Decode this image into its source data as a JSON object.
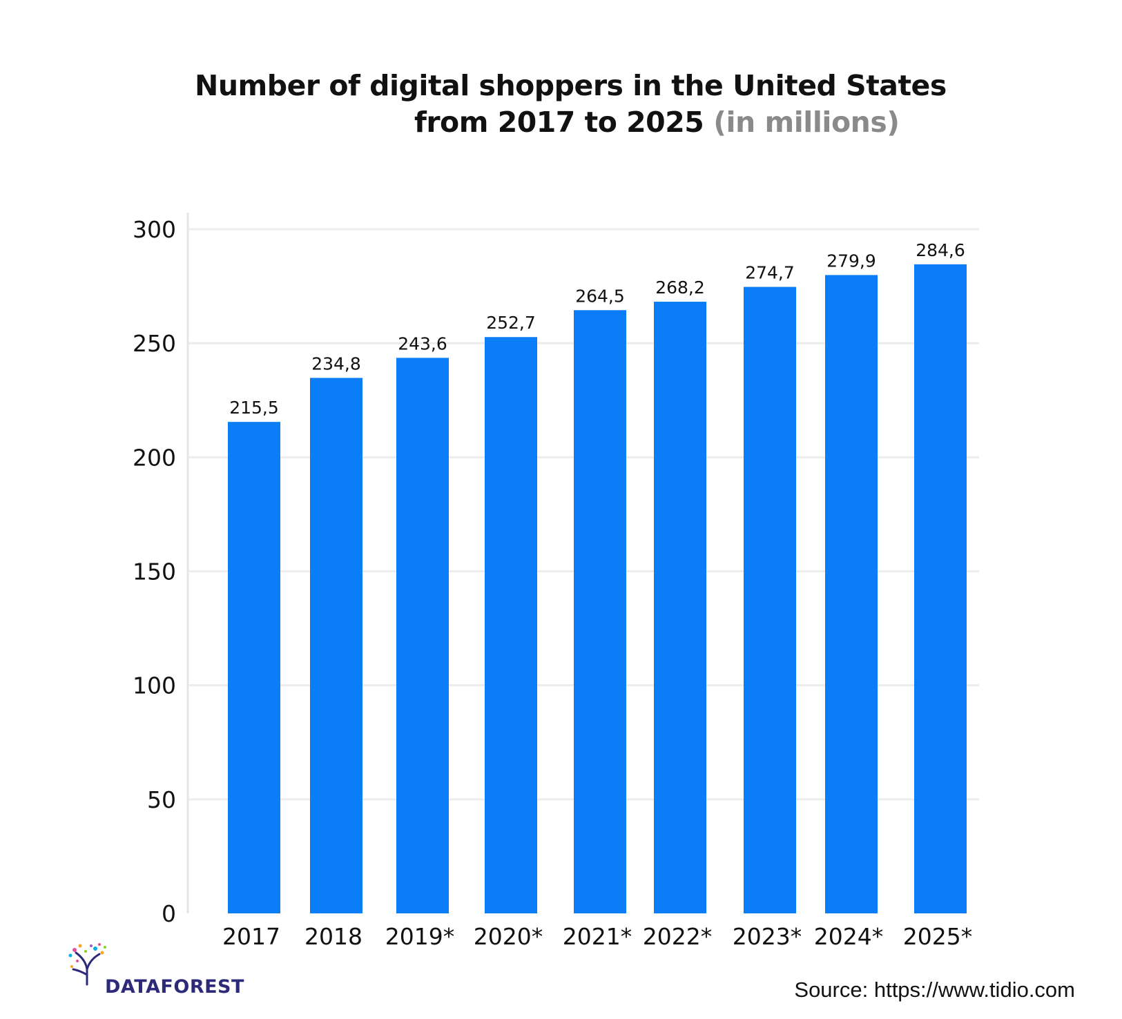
{
  "chart_data": {
    "type": "bar",
    "title_line1": "Number of digital shoppers in the United States",
    "title_line2": "from 2017 to 2025",
    "title_unit": "(in millions)",
    "categories": [
      "2017",
      "2018",
      "2019*",
      "2020*",
      "2021*",
      "2022*",
      "2023*",
      "2024*",
      "2025*"
    ],
    "values": [
      215.5,
      234.8,
      243.6,
      252.7,
      264.5,
      268.2,
      274.7,
      279.9,
      284.6
    ],
    "value_labels": [
      "215,5",
      "234,8",
      "243,6",
      "252,7",
      "264,5",
      "268,2",
      "274,7",
      "279,9",
      "284,6"
    ],
    "yticks": [
      0,
      50,
      100,
      150,
      200,
      250,
      300
    ],
    "ylim": [
      0,
      300
    ],
    "grid": true,
    "bar_color": "#0a7df7"
  },
  "logo": {
    "text": "DATAFOREST"
  },
  "source": {
    "text": "Source: https://www.tidio.com"
  }
}
